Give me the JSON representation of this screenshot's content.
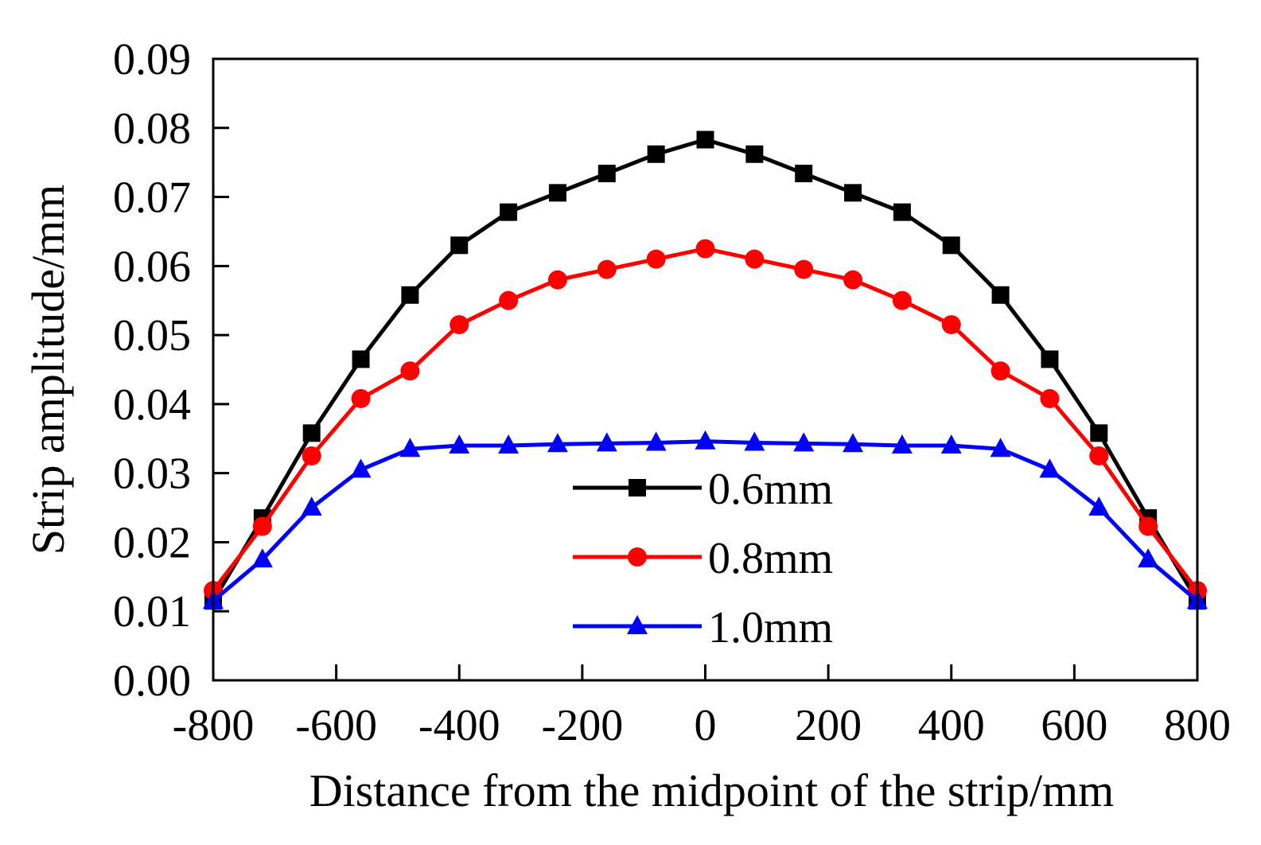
{
  "chart_data": {
    "type": "line",
    "title": "",
    "xlabel": "Distance from the midpoint of the strip/mm",
    "ylabel": "Strip amplitude/mm",
    "xlim": [
      -800,
      800
    ],
    "ylim": [
      0,
      0.09
    ],
    "grid": false,
    "legend_position": "bottom-center",
    "x_ticks": [
      -800,
      -600,
      -400,
      -200,
      0,
      200,
      400,
      600,
      800
    ],
    "x_tick_labels": [
      "-800",
      "-600",
      "-400",
      "-200",
      "0",
      "200",
      "400",
      "600",
      "800"
    ],
    "y_ticks": [
      0,
      0.01,
      0.02,
      0.03,
      0.04,
      0.05,
      0.06,
      0.07,
      0.08,
      0.09
    ],
    "y_tick_labels": [
      "0.00",
      "0.01",
      "0.02",
      "0.03",
      "0.04",
      "0.05",
      "0.06",
      "0.07",
      "0.08",
      "0.09"
    ],
    "x": [
      -800,
      -720,
      -640,
      -560,
      -480,
      -400,
      -320,
      -240,
      -160,
      -80,
      0,
      80,
      160,
      240,
      320,
      400,
      480,
      560,
      640,
      720,
      800
    ],
    "series": [
      {
        "name": "0.6mm",
        "color": "#000000",
        "marker": "square",
        "values": [
          0.0115,
          0.0235,
          0.0358,
          0.0465,
          0.0558,
          0.063,
          0.0678,
          0.0706,
          0.0734,
          0.0762,
          0.0783,
          0.0762,
          0.0734,
          0.0706,
          0.0678,
          0.063,
          0.0558,
          0.0465,
          0.0358,
          0.0235,
          0.0115
        ]
      },
      {
        "name": "0.8mm",
        "color": "#ff0000",
        "marker": "circle",
        "values": [
          0.013,
          0.0223,
          0.0325,
          0.0408,
          0.0448,
          0.0515,
          0.055,
          0.058,
          0.0595,
          0.061,
          0.0625,
          0.061,
          0.0595,
          0.058,
          0.055,
          0.0515,
          0.0448,
          0.0408,
          0.0325,
          0.0223,
          0.013
        ]
      },
      {
        "name": "1.0mm",
        "color": "#0000ff",
        "marker": "triangle",
        "values": [
          0.0115,
          0.0175,
          0.025,
          0.0305,
          0.0335,
          0.034,
          0.034,
          0.0342,
          0.0343,
          0.0344,
          0.0346,
          0.0344,
          0.0343,
          0.0342,
          0.034,
          0.034,
          0.0335,
          0.0305,
          0.025,
          0.0175,
          0.0115
        ]
      }
    ]
  }
}
